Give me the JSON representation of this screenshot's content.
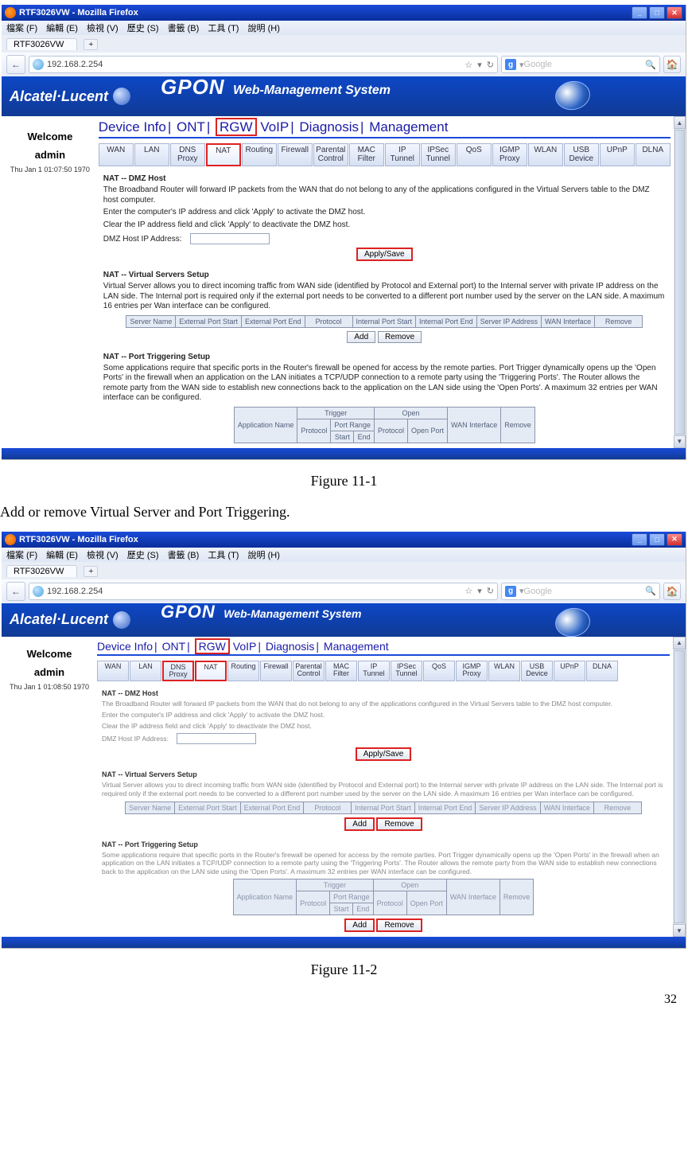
{
  "doc": {
    "figure1": "Figure 11-1",
    "paragraph": "Add or remove Virtual Server and Port Triggering.",
    "figure2": "Figure 11-2",
    "pageNum": "32"
  },
  "ff": {
    "title": "RTF3026VW - Mozilla Firefox",
    "menus": [
      "檔案 (F)",
      "編輯 (E)",
      "檢視 (V)",
      "歷史 (S)",
      "書籤 (B)",
      "工具 (T)",
      "說明 (H)"
    ],
    "tab": "RTF3026VW",
    "url": "192.168.2.254",
    "search_placeholder": "Google"
  },
  "banner": {
    "brand": "Alcatel·Lucent",
    "gpon": "GPON",
    "wms": "Web-Management System"
  },
  "sidebar": {
    "welcome": "Welcome",
    "admin": "admin",
    "timestamp": "Thu Jan 1 01:07:50 1970",
    "timestamp2": "Thu Jan 1 01:08:50 1970"
  },
  "topnav": {
    "items": [
      "Device Info",
      "ONT",
      "RGW",
      "VoIP",
      "Diagnosis",
      "Management"
    ],
    "active": "RGW"
  },
  "subtabs": [
    {
      "l1": "WAN"
    },
    {
      "l1": "LAN"
    },
    {
      "l1": "DNS",
      "l2": "Proxy"
    },
    {
      "l1": "NAT",
      "active": true
    },
    {
      "l1": "Routing"
    },
    {
      "l1": "Firewall"
    },
    {
      "l1": "Parental",
      "l2": "Control"
    },
    {
      "l1": "MAC",
      "l2": "Filter"
    },
    {
      "l1": "IP",
      "l2": "Tunnel"
    },
    {
      "l1": "IPSec",
      "l2": "Tunnel"
    },
    {
      "l1": "QoS"
    },
    {
      "l1": "IGMP",
      "l2": "Proxy"
    },
    {
      "l1": "WLAN"
    },
    {
      "l1": "USB",
      "l2": "Device"
    },
    {
      "l1": "UPnP"
    },
    {
      "l1": "DLNA"
    }
  ],
  "dmz": {
    "title": "NAT -- DMZ Host",
    "p1": "The Broadband Router will forward IP packets from the WAN that do not belong to any of the applications configured in the Virtual Servers table to the DMZ host computer.",
    "p2": "Enter the computer's IP address and click 'Apply' to activate the DMZ host.",
    "p3": "Clear the IP address field and click 'Apply' to deactivate the DMZ host.",
    "label": "DMZ Host IP Address:",
    "apply": "Apply/Save"
  },
  "vs": {
    "title": "NAT -- Virtual Servers Setup",
    "p": "Virtual Server allows you to direct incoming traffic from WAN side (identified by Protocol and External port) to the Internal server with private IP address on the LAN side. The Internal port is required only if the external port needs to be converted to a different port number used by the server on the LAN side. A maximum 16 entries per Wan interface can be configured.",
    "headers": [
      "Server Name",
      "External Port Start",
      "External Port End",
      "Protocol",
      "Internal Port Start",
      "Internal Port End",
      "Server IP Address",
      "WAN Interface",
      "Remove"
    ],
    "add": "Add",
    "remove": "Remove"
  },
  "pt": {
    "title": "NAT -- Port Triggering Setup",
    "p": "Some applications require that specific ports in the Router's firewall be opened for access by the remote parties. Port Trigger dynamically opens up the 'Open Ports' in the firewall when an application on the LAN initiates a TCP/UDP connection to a remote party using the 'Triggering Ports'. The Router allows the remote party from the WAN side to establish new connections back to the application on the LAN side using the 'Open Ports'. A maximum 32 entries per WAN interface can be configured.",
    "h_app": "Application Name",
    "h_trigger": "Trigger",
    "h_open": "Open",
    "h_proto": "Protocol",
    "h_pr": "Port Range",
    "h_start": "Start",
    "h_end": "End",
    "h_op": "Open Port",
    "h_wan": "WAN Interface",
    "h_rm": "Remove"
  }
}
